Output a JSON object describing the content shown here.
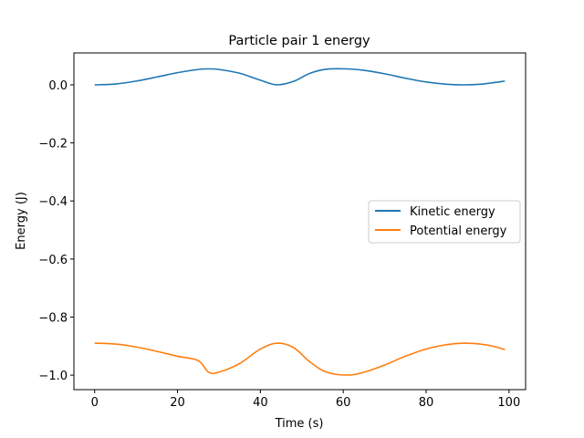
{
  "chart_data": {
    "type": "line",
    "title": "Particle pair 1 energy",
    "xlabel": "Time (s)",
    "ylabel": "Energy (J)",
    "xlim": [
      -5,
      104
    ],
    "ylim": [
      -1.05,
      0.11
    ],
    "xticks": [
      0,
      20,
      40,
      60,
      80,
      100
    ],
    "xtick_labels": [
      "0",
      "20",
      "40",
      "60",
      "80",
      "100"
    ],
    "yticks": [
      0.0,
      -0.2,
      -0.4,
      -0.6,
      -0.8,
      -1.0
    ],
    "ytick_labels": [
      "0.0",
      "−0.2",
      "−0.4",
      "−0.6",
      "−0.8",
      "−1.0"
    ],
    "grid": false,
    "legend_position": "center-right",
    "x": [
      0,
      5,
      10,
      15,
      20,
      25,
      27.5,
      30,
      35,
      40,
      44,
      48,
      52,
      56,
      61,
      65,
      70,
      75,
      80,
      85,
      89,
      93,
      96,
      99
    ],
    "series": [
      {
        "name": "Kinetic energy",
        "color": "#1f77b4",
        "values": [
          0.0,
          0.003,
          0.013,
          0.027,
          0.042,
          0.053,
          0.055,
          0.053,
          0.04,
          0.016,
          0.0,
          0.012,
          0.04,
          0.054,
          0.055,
          0.05,
          0.038,
          0.023,
          0.01,
          0.002,
          0.0,
          0.002,
          0.007,
          0.013
        ]
      },
      {
        "name": "Potential energy",
        "color": "#ff7f0e",
        "values": [
          -0.89,
          -0.893,
          -0.903,
          -0.918,
          -0.935,
          -0.95,
          -0.99,
          -0.99,
          -0.96,
          -0.91,
          -0.89,
          -0.905,
          -0.955,
          -0.99,
          -1.0,
          -0.99,
          -0.965,
          -0.935,
          -0.91,
          -0.895,
          -0.89,
          -0.893,
          -0.9,
          -0.912
        ]
      }
    ]
  }
}
